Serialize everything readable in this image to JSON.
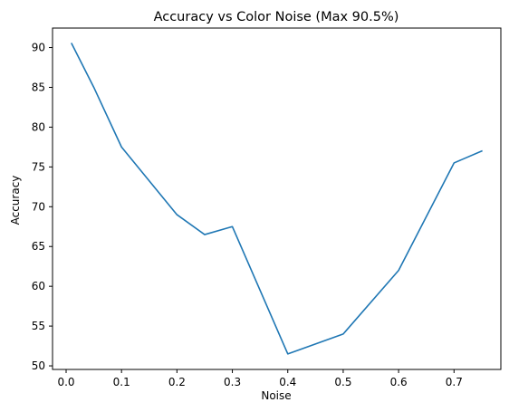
{
  "chart_data": {
    "type": "line",
    "title": "Accuracy vs Color Noise (Max 90.5%)",
    "xlabel": "Noise",
    "ylabel": "Accuracy",
    "xlim": [
      -0.0245,
      0.7845
    ],
    "ylim": [
      49.55,
      92.45
    ],
    "x_ticks": [
      0.0,
      0.1,
      0.2,
      0.3,
      0.4,
      0.5,
      0.6,
      0.7
    ],
    "x_tick_labels": [
      "0.0",
      "0.1",
      "0.2",
      "0.3",
      "0.4",
      "0.5",
      "0.6",
      "0.7"
    ],
    "y_ticks": [
      50,
      55,
      60,
      65,
      70,
      75,
      80,
      85,
      90
    ],
    "y_tick_labels": [
      "50",
      "55",
      "60",
      "65",
      "70",
      "75",
      "80",
      "85",
      "90"
    ],
    "grid": false,
    "line_color": "#1f77b4",
    "series": [
      {
        "x": [
          0.01,
          0.05,
          0.1,
          0.2,
          0.25,
          0.3,
          0.4,
          0.5,
          0.6,
          0.7,
          0.75
        ],
        "values": [
          90.5,
          85.0,
          77.5,
          69.0,
          66.5,
          67.5,
          51.5,
          54.0,
          62.0,
          75.5,
          77.0
        ]
      }
    ]
  }
}
